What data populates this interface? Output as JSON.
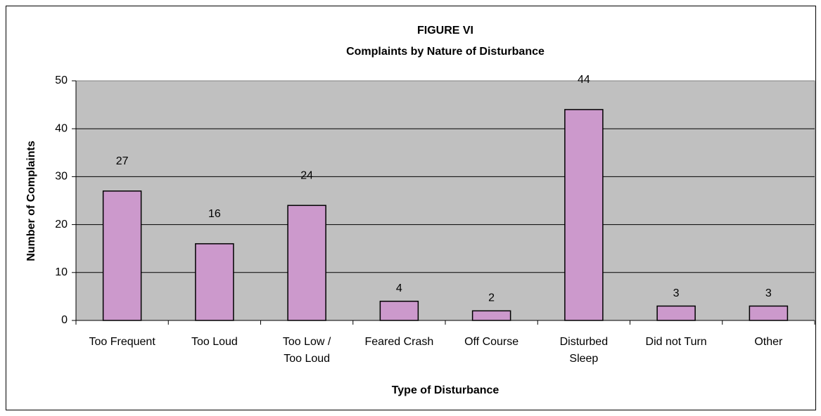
{
  "chart_data": {
    "type": "bar",
    "title": "FIGURE VI",
    "subtitle": "Complaints by Nature of Disturbance",
    "x_label": "Type of Disturbance",
    "y_label": "Number of Complaints",
    "categories": [
      "Too Frequent",
      "Too Loud",
      "Too Low /\nToo Loud",
      "Feared Crash",
      "Off Course",
      "Disturbed\nSleep",
      "Did not Turn",
      "Other"
    ],
    "values": [
      27,
      16,
      24,
      4,
      2,
      44,
      3,
      3
    ],
    "color": "#cc99cc",
    "ylim": [
      0,
      50
    ],
    "yticks": [
      0,
      10,
      20,
      30,
      40,
      50
    ],
    "grid": true
  }
}
